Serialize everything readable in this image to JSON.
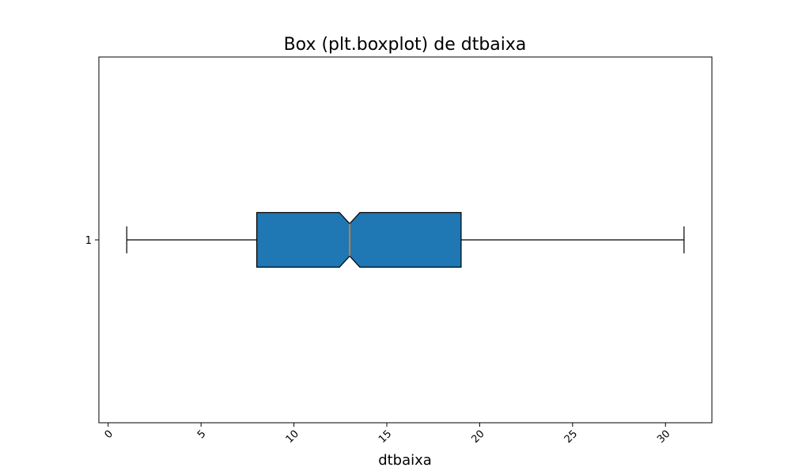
{
  "chart_data": {
    "type": "boxplot",
    "title": "Box (plt.boxplot) de dtbaixa",
    "xlabel": "dtbaixa",
    "ylabel": "",
    "orientation": "horizontal",
    "notched": true,
    "xlim": [
      -0.5,
      32.5
    ],
    "x_ticks": [
      0,
      5,
      10,
      15,
      20,
      25,
      30
    ],
    "x_tick_labels": [
      "0",
      "5",
      "10",
      "15",
      "20",
      "25",
      "30"
    ],
    "x_tick_rotation": -45,
    "categories": [
      "1"
    ],
    "series": [
      {
        "whisker_low": 1,
        "q1": 8,
        "median": 13,
        "q3": 19,
        "whisker_high": 31,
        "notch_low": 12.45,
        "notch_high": 13.55
      }
    ],
    "grid": false,
    "colors": {
      "box_fill": "#1f77b4",
      "box_edge": "#000000",
      "median": "#ff7f0e",
      "whisker": "#000000",
      "axes": "#000000"
    }
  }
}
